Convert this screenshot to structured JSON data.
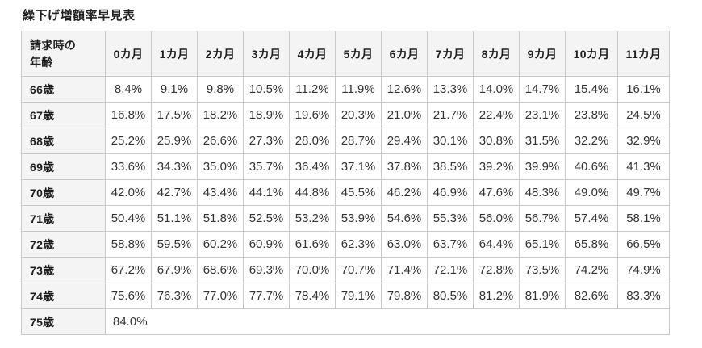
{
  "title": "繰下げ増額率早見表",
  "table": {
    "corner_header_lines": [
      "請求時の",
      "年齢"
    ],
    "month_headers": [
      "0カ月",
      "1カ月",
      "2カ月",
      "3カ月",
      "4カ月",
      "5カ月",
      "6カ月",
      "7カ月",
      "8カ月",
      "9カ月",
      "10カ月",
      "11カ月"
    ],
    "rows": [
      {
        "age": "66歳",
        "values": [
          "8.4%",
          "9.1%",
          "9.8%",
          "10.5%",
          "11.2%",
          "11.9%",
          "12.6%",
          "13.3%",
          "14.0%",
          "14.7%",
          "15.4%",
          "16.1%"
        ]
      },
      {
        "age": "67歳",
        "values": [
          "16.8%",
          "17.5%",
          "18.2%",
          "18.9%",
          "19.6%",
          "20.3%",
          "21.0%",
          "21.7%",
          "22.4%",
          "23.1%",
          "23.8%",
          "24.5%"
        ]
      },
      {
        "age": "68歳",
        "values": [
          "25.2%",
          "25.9%",
          "26.6%",
          "27.3%",
          "28.0%",
          "28.7%",
          "29.4%",
          "30.1%",
          "30.8%",
          "31.5%",
          "32.2%",
          "32.9%"
        ]
      },
      {
        "age": "69歳",
        "values": [
          "33.6%",
          "34.3%",
          "35.0%",
          "35.7%",
          "36.4%",
          "37.1%",
          "37.8%",
          "38.5%",
          "39.2%",
          "39.9%",
          "40.6%",
          "41.3%"
        ]
      },
      {
        "age": "70歳",
        "values": [
          "42.0%",
          "42.7%",
          "43.4%",
          "44.1%",
          "44.8%",
          "45.5%",
          "46.2%",
          "46.9%",
          "47.6%",
          "48.3%",
          "49.0%",
          "49.7%"
        ]
      },
      {
        "age": "71歳",
        "values": [
          "50.4%",
          "51.1%",
          "51.8%",
          "52.5%",
          "53.2%",
          "53.9%",
          "54.6%",
          "55.3%",
          "56.0%",
          "56.7%",
          "57.4%",
          "58.1%"
        ]
      },
      {
        "age": "72歳",
        "values": [
          "58.8%",
          "59.5%",
          "60.2%",
          "60.9%",
          "61.6%",
          "62.3%",
          "63.0%",
          "63.7%",
          "64.4%",
          "65.1%",
          "65.8%",
          "66.5%"
        ]
      },
      {
        "age": "73歳",
        "values": [
          "67.2%",
          "67.9%",
          "68.6%",
          "69.3%",
          "70.0%",
          "70.7%",
          "71.4%",
          "72.1%",
          "72.8%",
          "73.5%",
          "74.2%",
          "74.9%"
        ]
      },
      {
        "age": "74歳",
        "values": [
          "75.6%",
          "76.3%",
          "77.0%",
          "77.7%",
          "78.4%",
          "79.1%",
          "79.8%",
          "80.5%",
          "81.2%",
          "81.9%",
          "82.6%",
          "83.3%"
        ]
      },
      {
        "age": "75歳",
        "values": [
          "84.0%"
        ],
        "span_all": true
      }
    ]
  },
  "colors": {
    "page_bg": "#ffffff",
    "header_bg": "#f4f4f4",
    "border": "#c9c9c9",
    "data_text": "#333333",
    "heading_text": "#1f1f1f"
  }
}
